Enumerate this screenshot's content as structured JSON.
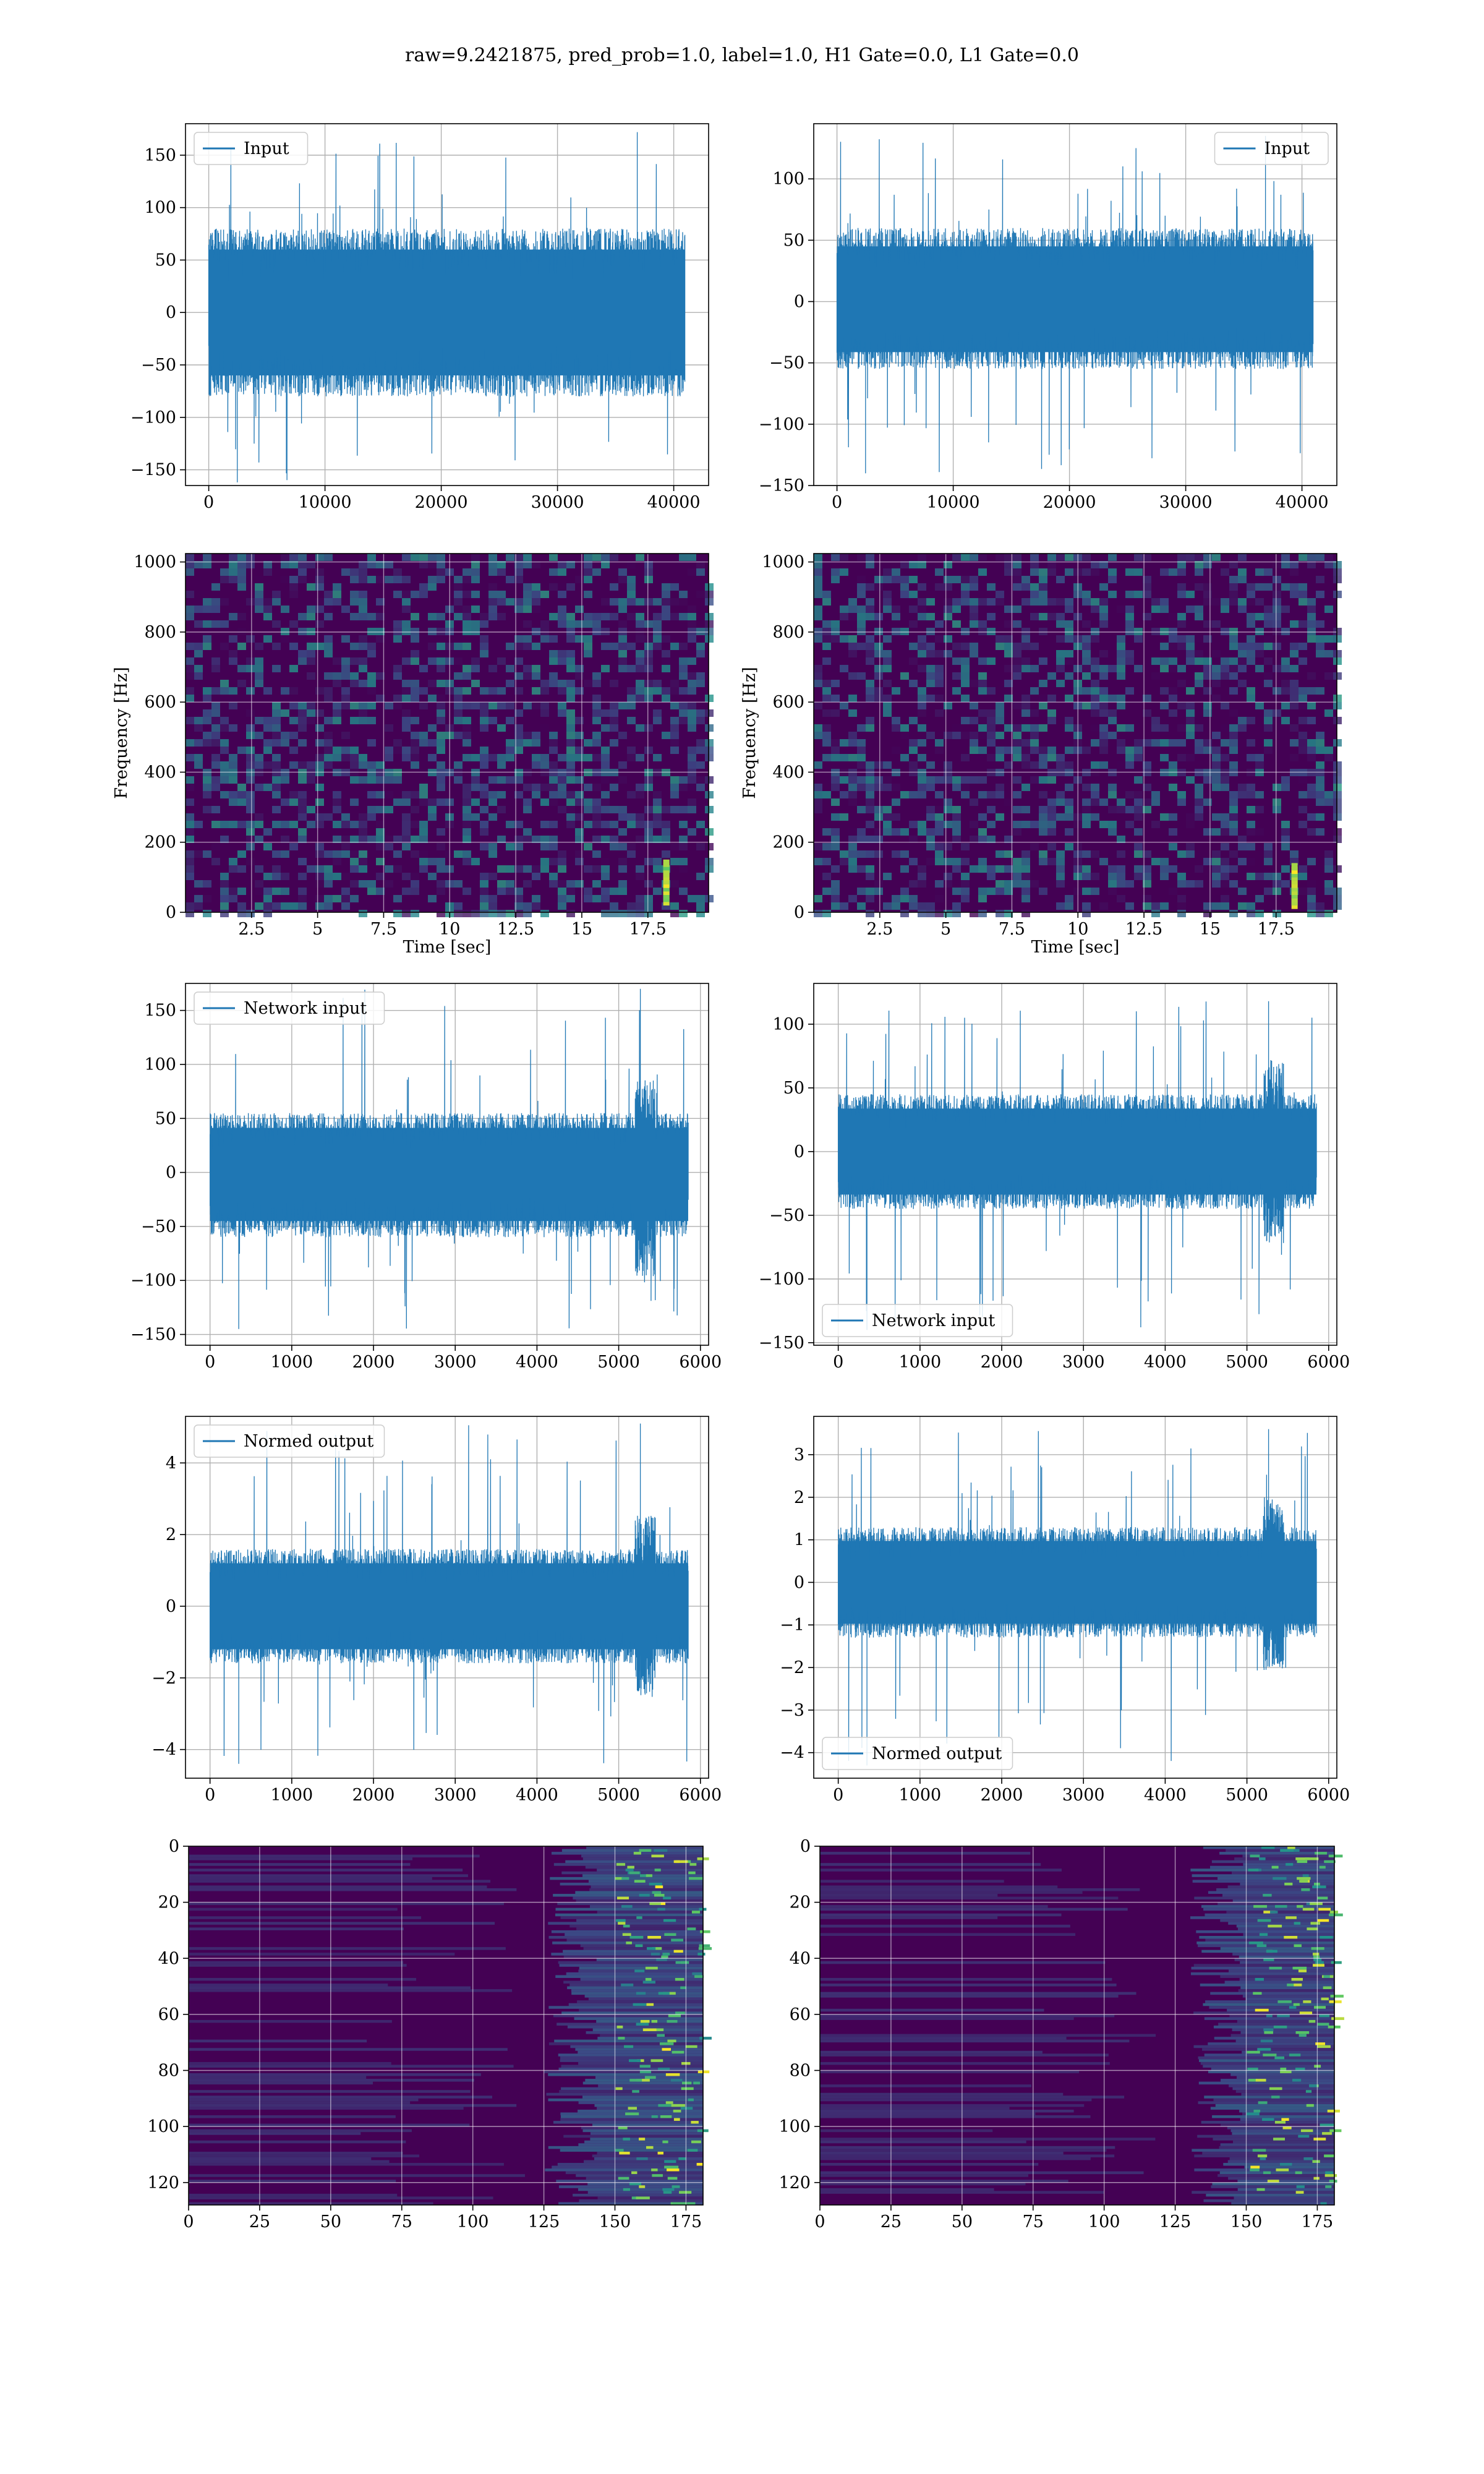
{
  "figure": {
    "suptitle": "raw=9.2421875, pred_prob=1.0, label=1.0, H1 Gate=0.0, L1 Gate=0.0"
  },
  "colors": {
    "line": "#1f77b4",
    "grid": "#b0b0b0",
    "viridis_low": "#440154",
    "viridis_mid": "#21918c",
    "viridis_high": "#fde725"
  },
  "chart_data": [
    {
      "id": "input_h1",
      "type": "line",
      "legend": "Input",
      "legend_loc": "upper left",
      "xlim": [
        -2000,
        43000
      ],
      "ylim": [
        -165,
        180
      ],
      "xticks": [
        0,
        10000,
        20000,
        30000,
        40000
      ],
      "yticks": [
        -150,
        -100,
        -50,
        0,
        50,
        100,
        150
      ],
      "x_range": [
        0,
        40960
      ],
      "band": [
        -80,
        80
      ],
      "peak_max": 172,
      "peak_min": -162,
      "xlabel": "",
      "ylabel": "",
      "grid": true
    },
    {
      "id": "input_l1",
      "type": "line",
      "legend": "Input",
      "legend_loc": "upper right",
      "xlim": [
        -2000,
        43000
      ],
      "ylim": [
        -150,
        145
      ],
      "xticks": [
        0,
        10000,
        20000,
        30000,
        40000
      ],
      "yticks": [
        -150,
        -100,
        -50,
        0,
        50,
        100
      ],
      "x_range": [
        0,
        40960
      ],
      "band": [
        -55,
        60
      ],
      "peak_max": 135,
      "peak_min": -140,
      "xlabel": "",
      "ylabel": "",
      "grid": true
    },
    {
      "id": "spec_h1",
      "type": "heatmap",
      "xlim": [
        0,
        19.8
      ],
      "ylim": [
        0,
        1024
      ],
      "xticks": [
        2.5,
        5.0,
        7.5,
        10.0,
        12.5,
        15.0,
        17.5
      ],
      "yticks": [
        0,
        200,
        400,
        600,
        800,
        1000
      ],
      "xlabel": "Time [sec]",
      "ylabel": "Frequency [Hz]",
      "chirp_time": 18.2,
      "chirp_freq_range": [
        30,
        140
      ],
      "grid": true
    },
    {
      "id": "spec_l1",
      "type": "heatmap",
      "xlim": [
        0,
        19.8
      ],
      "ylim": [
        0,
        1024
      ],
      "xticks": [
        2.5,
        5.0,
        7.5,
        10.0,
        12.5,
        15.0,
        17.5
      ],
      "yticks": [
        0,
        200,
        400,
        600,
        800,
        1000
      ],
      "xlabel": "Time [sec]",
      "ylabel": "Frequency [Hz]",
      "chirp_time": 18.2,
      "chirp_freq_range": [
        20,
        130
      ],
      "grid": true
    },
    {
      "id": "netin_h1",
      "type": "line",
      "legend": "Network input",
      "legend_loc": "upper left",
      "xlim": [
        -300,
        6100
      ],
      "ylim": [
        -160,
        175
      ],
      "xticks": [
        0,
        1000,
        2000,
        3000,
        4000,
        5000,
        6000
      ],
      "yticks": [
        -150,
        -100,
        -50,
        0,
        50,
        100,
        150
      ],
      "x_range": [
        0,
        5850
      ],
      "band": [
        -60,
        55
      ],
      "peak_max": 170,
      "peak_min": -145,
      "xlabel": "",
      "ylabel": "",
      "grid": true
    },
    {
      "id": "netin_l1",
      "type": "line",
      "legend": "Network input",
      "legend_loc": "lower left",
      "xlim": [
        -300,
        6100
      ],
      "ylim": [
        -152,
        132
      ],
      "xticks": [
        0,
        1000,
        2000,
        3000,
        4000,
        5000,
        6000
      ],
      "yticks": [
        -150,
        -100,
        -50,
        0,
        50,
        100
      ],
      "x_range": [
        0,
        5850
      ],
      "band": [
        -45,
        45
      ],
      "peak_max": 118,
      "peak_min": -140,
      "xlabel": "",
      "ylabel": "",
      "grid": true
    },
    {
      "id": "normed_h1",
      "type": "line",
      "legend": "Normed output",
      "legend_loc": "upper left",
      "xlim": [
        -300,
        6100
      ],
      "ylim": [
        -4.8,
        5.3
      ],
      "xticks": [
        0,
        1000,
        2000,
        3000,
        4000,
        5000,
        6000
      ],
      "yticks": [
        -4,
        -2,
        0,
        2,
        4
      ],
      "x_range": [
        0,
        5850
      ],
      "band": [
        -1.6,
        1.6
      ],
      "peak_max": 5.1,
      "peak_min": -4.4,
      "xlabel": "",
      "ylabel": "",
      "grid": true
    },
    {
      "id": "normed_l1",
      "type": "line",
      "legend": "Normed output",
      "legend_loc": "lower left",
      "xlim": [
        -300,
        6100
      ],
      "ylim": [
        -4.6,
        3.9
      ],
      "xticks": [
        0,
        1000,
        2000,
        3000,
        4000,
        5000,
        6000
      ],
      "yticks": [
        -4,
        -3,
        -2,
        -1,
        0,
        1,
        2,
        3
      ],
      "x_range": [
        0,
        5850
      ],
      "band": [
        -1.3,
        1.3
      ],
      "peak_max": 3.6,
      "peak_min": -4.3,
      "xlabel": "",
      "ylabel": "",
      "grid": true
    },
    {
      "id": "feat_h1",
      "type": "heatmap",
      "xlim": [
        0,
        181
      ],
      "ylim": [
        128,
        0
      ],
      "xticks": [
        0,
        25,
        50,
        75,
        100,
        125,
        150,
        175
      ],
      "yticks": [
        0,
        20,
        40,
        60,
        80,
        100,
        120
      ],
      "xlabel": "",
      "ylabel": "",
      "active_from": 125,
      "grid": true
    },
    {
      "id": "feat_l1",
      "type": "heatmap",
      "xlim": [
        0,
        181
      ],
      "ylim": [
        128,
        0
      ],
      "xticks": [
        0,
        25,
        50,
        75,
        100,
        125,
        150,
        175
      ],
      "yticks": [
        0,
        20,
        40,
        60,
        80,
        100,
        120
      ],
      "xlabel": "",
      "ylabel": "",
      "active_from": 130,
      "grid": true
    }
  ]
}
